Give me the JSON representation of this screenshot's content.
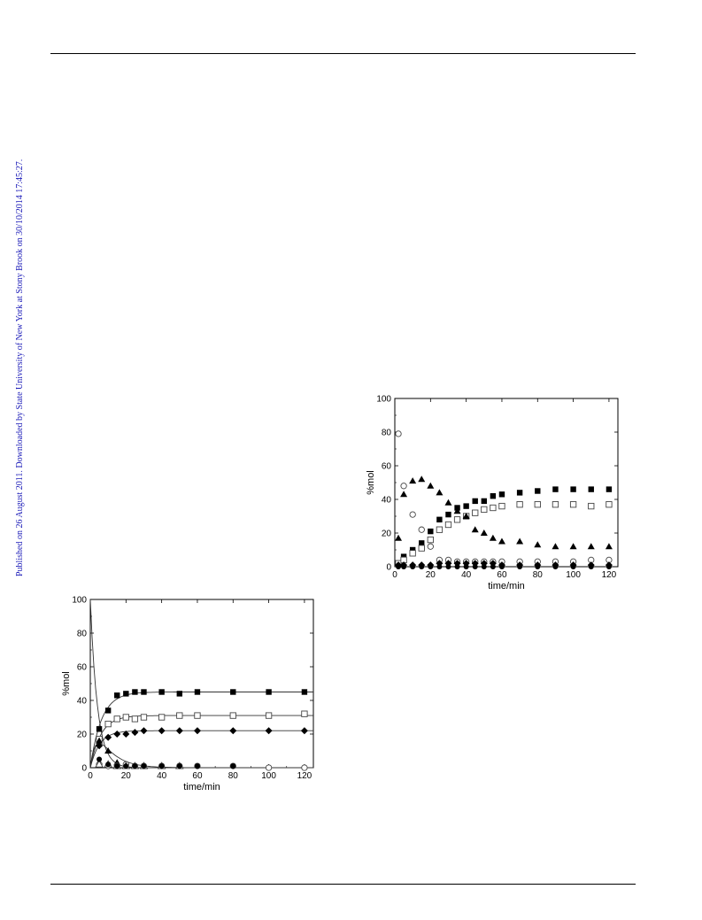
{
  "page": {
    "side_note": "Published on 26 August 2011. Downloaded by State University of New York at Stony Brook on 30/10/2014 17:45:27."
  },
  "chart_data": [
    {
      "type": "scatter",
      "xlabel": "time/min",
      "ylabel": "%mol",
      "xlim": [
        0,
        125
      ],
      "ylim": [
        0,
        100
      ],
      "xticks": [
        0,
        20,
        40,
        60,
        80,
        100,
        120
      ],
      "yticks": [
        0,
        20,
        40,
        60,
        80,
        100
      ],
      "grid": false,
      "series": [
        {
          "marker": "filled-square",
          "x": [
            2,
            5,
            10,
            15,
            20,
            25,
            30,
            35,
            40,
            45,
            50,
            55,
            60,
            70,
            80,
            90,
            100,
            110,
            120
          ],
          "y": [
            2,
            6,
            10,
            14,
            21,
            28,
            31,
            35,
            36,
            39,
            39,
            42,
            43,
            44,
            45,
            46,
            46,
            46,
            46
          ]
        },
        {
          "marker": "open-square",
          "x": [
            2,
            5,
            10,
            15,
            20,
            25,
            30,
            35,
            40,
            45,
            50,
            55,
            60,
            70,
            80,
            90,
            100,
            110,
            120
          ],
          "y": [
            2,
            4,
            8,
            11,
            16,
            22,
            25,
            28,
            30,
            32,
            34,
            35,
            36,
            37,
            37,
            37,
            37,
            36,
            37
          ]
        },
        {
          "marker": "filled-triangle",
          "x": [
            2,
            5,
            10,
            15,
            20,
            25,
            30,
            35,
            40,
            45,
            50,
            55,
            60,
            70,
            80,
            90,
            100,
            110,
            120
          ],
          "y": [
            17,
            43,
            51,
            52,
            48,
            44,
            38,
            33,
            30,
            22,
            20,
            17,
            15,
            15,
            13,
            12,
            12,
            12,
            12
          ]
        },
        {
          "marker": "open-circle",
          "x": [
            2,
            5,
            10,
            15,
            20,
            25,
            30,
            35,
            40,
            45,
            50,
            55,
            60,
            70,
            80,
            90,
            100,
            110,
            120
          ],
          "y": [
            79,
            48,
            31,
            22,
            12,
            4,
            4,
            3,
            3,
            3,
            3,
            3,
            3,
            3,
            3,
            3,
            3,
            4,
            4
          ]
        },
        {
          "marker": "filled-diamond",
          "x": [
            2,
            5,
            10,
            15,
            20,
            25,
            30,
            35,
            40,
            45,
            50,
            55,
            60,
            70,
            80,
            90,
            100,
            110,
            120
          ],
          "y": [
            1,
            1,
            1,
            1,
            1,
            2,
            2,
            2,
            2,
            2,
            2,
            2,
            1,
            1,
            1,
            1,
            1,
            1,
            1
          ]
        },
        {
          "marker": "filled-circle",
          "x": [
            2,
            5,
            10,
            15,
            20,
            25,
            30,
            35,
            40,
            45,
            50,
            55,
            60,
            70,
            80,
            90,
            100,
            110,
            120
          ],
          "y": [
            0,
            0,
            0,
            0,
            0,
            0,
            0,
            0,
            0,
            0,
            0,
            0,
            0,
            0,
            0,
            0,
            0,
            0,
            0
          ]
        }
      ]
    },
    {
      "type": "scatter",
      "xlabel": "time/min",
      "ylabel": "%mol",
      "xlim": [
        0,
        125
      ],
      "ylim": [
        0,
        100
      ],
      "xticks": [
        0,
        20,
        40,
        60,
        80,
        100,
        120
      ],
      "yticks": [
        0,
        20,
        40,
        60,
        80,
        100
      ],
      "grid": false,
      "series": [
        {
          "marker": "filled-square",
          "x": [
            5,
            10,
            15,
            20,
            25,
            30,
            40,
            50,
            60,
            80,
            100,
            120
          ],
          "y": [
            23,
            34,
            43,
            44,
            45,
            45,
            45,
            44,
            45,
            45,
            45,
            45
          ],
          "fit": {
            "plateau": 45,
            "k": 0.16
          }
        },
        {
          "marker": "open-square",
          "x": [
            5,
            10,
            15,
            20,
            25,
            30,
            40,
            50,
            60,
            80,
            100,
            120
          ],
          "y": [
            17,
            26,
            29,
            30,
            29,
            30,
            30,
            31,
            31,
            31,
            31,
            32
          ],
          "fit": {
            "plateau": 31,
            "k": 0.17
          }
        },
        {
          "marker": "filled-diamond",
          "x": [
            5,
            10,
            15,
            20,
            25,
            30,
            40,
            50,
            60,
            80,
            100,
            120
          ],
          "y": [
            13,
            18,
            20,
            20,
            21,
            22,
            22,
            22,
            22,
            22,
            22,
            22
          ],
          "fit": {
            "plateau": 22,
            "k": 0.19
          }
        },
        {
          "marker": "filled-triangle",
          "x": [
            5,
            10,
            15,
            20
          ],
          "y": [
            16,
            10,
            3,
            1
          ]
        },
        {
          "marker": "open-circle",
          "x": [
            5,
            10,
            15,
            20,
            25,
            30,
            40,
            50,
            60,
            80,
            100,
            120
          ],
          "y": [
            2,
            1,
            1,
            2,
            1,
            1,
            1,
            1,
            1,
            1,
            0,
            0
          ]
        },
        {
          "marker": "open-triangle",
          "x": [
            5,
            10,
            15,
            20,
            25,
            30,
            40,
            50
          ],
          "y": [
            2,
            2,
            1,
            1,
            1,
            1,
            1,
            1
          ]
        },
        {
          "marker": "filled-circle",
          "x": [
            5,
            10,
            15,
            20,
            25,
            30,
            40,
            50,
            60,
            80
          ],
          "y": [
            5,
            2,
            1,
            1,
            1,
            1,
            1,
            1,
            1,
            1
          ]
        },
        {
          "marker": "none",
          "fit": {
            "type": "decay",
            "a0": 100,
            "k": 0.25
          }
        },
        {
          "marker": "none",
          "fit": {
            "type": "transient",
            "amp": 27,
            "k1": 0.32,
            "k2": 0.12
          }
        }
      ]
    }
  ]
}
